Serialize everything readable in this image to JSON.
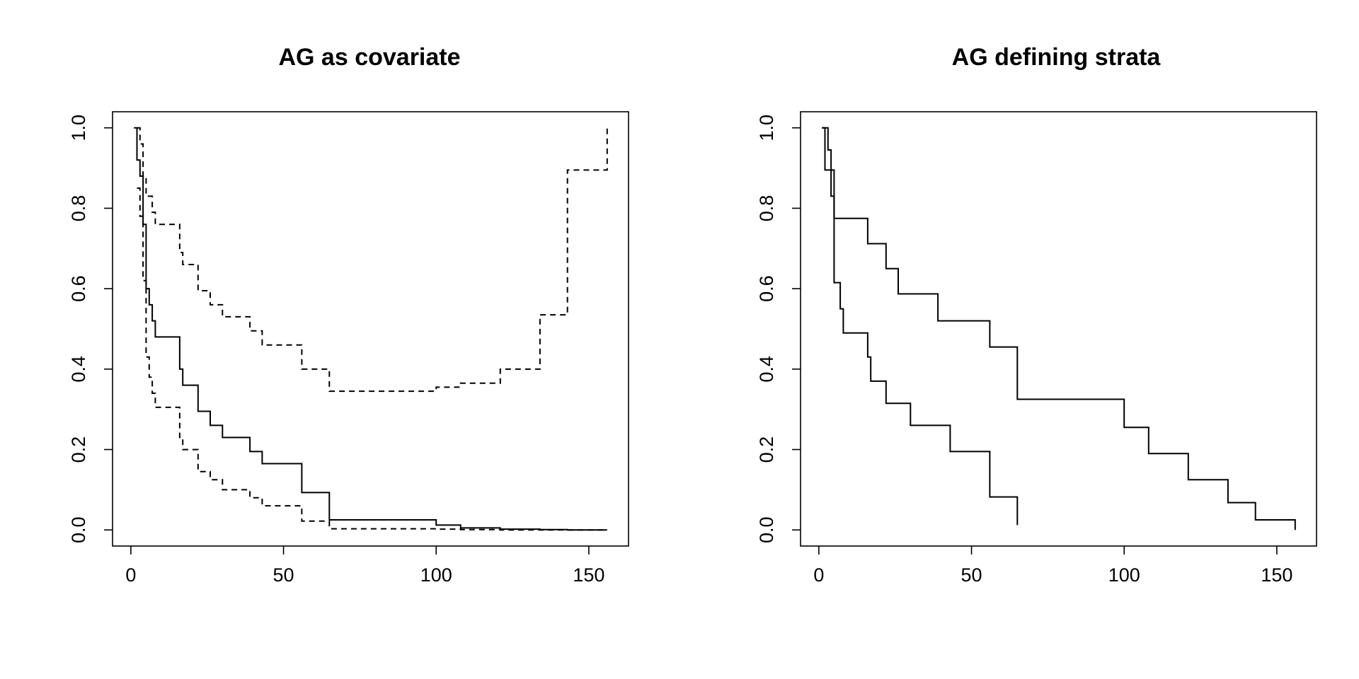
{
  "chart_data": [
    {
      "type": "line",
      "title": "AG as covariate",
      "xlabel": "",
      "ylabel": "",
      "xlim": [
        -6,
        163
      ],
      "ylim": [
        -0.04,
        1.04
      ],
      "xticks": [
        0,
        50,
        100,
        150
      ],
      "xtick_labels": [
        "0",
        "50",
        "100",
        "150"
      ],
      "yticks": [
        0,
        0.2,
        0.4,
        0.6,
        0.8,
        1
      ],
      "ytick_labels": [
        "0.0",
        "0.2",
        "0.4",
        "0.6",
        "0.8",
        "1.0"
      ],
      "step": true,
      "grid": false,
      "series": [
        {
          "style": "solid",
          "x": [
            1,
            2,
            3,
            4,
            5,
            6,
            7,
            8,
            16,
            17,
            22,
            26,
            30,
            39,
            43,
            56,
            65,
            100,
            108,
            121,
            134,
            143,
            156
          ],
          "y": [
            1.0,
            0.92,
            0.88,
            0.76,
            0.6,
            0.56,
            0.52,
            0.48,
            0.4,
            0.36,
            0.295,
            0.26,
            0.23,
            0.195,
            0.165,
            0.093,
            0.025,
            0.012,
            0.005,
            0.002,
            0.001,
            0.0,
            0.0
          ]
        },
        {
          "style": "dashed",
          "x": [
            2,
            3,
            4,
            5,
            7,
            8,
            16,
            17,
            20,
            22,
            26,
            30,
            39,
            43,
            56,
            65,
            100,
            108,
            121,
            134,
            143,
            156,
            156
          ],
          "y": [
            1.0,
            0.96,
            0.88,
            0.83,
            0.79,
            0.76,
            0.69,
            0.66,
            0.66,
            0.595,
            0.56,
            0.53,
            0.495,
            0.46,
            0.4,
            0.345,
            0.355,
            0.365,
            0.4,
            0.535,
            0.895,
            0.895,
            1.0
          ]
        },
        {
          "style": "dashed",
          "x": [
            2,
            3,
            4,
            5,
            6,
            7,
            8,
            16,
            17,
            22,
            26,
            30,
            39,
            43,
            56,
            65,
            100,
            108,
            121,
            134,
            156
          ],
          "y": [
            0.85,
            0.78,
            0.62,
            0.43,
            0.38,
            0.34,
            0.305,
            0.23,
            0.2,
            0.145,
            0.125,
            0.1,
            0.08,
            0.06,
            0.022,
            0.003,
            0.002,
            0.001,
            0.0,
            0.0,
            0.0
          ]
        }
      ]
    },
    {
      "type": "line",
      "title": "AG defining strata",
      "xlabel": "",
      "ylabel": "",
      "xlim": [
        -6,
        163
      ],
      "ylim": [
        -0.04,
        1.04
      ],
      "xticks": [
        0,
        50,
        100,
        150
      ],
      "xtick_labels": [
        "0",
        "50",
        "100",
        "150"
      ],
      "yticks": [
        0,
        0.2,
        0.4,
        0.6,
        0.8,
        1
      ],
      "ytick_labels": [
        "0.0",
        "0.2",
        "0.4",
        "0.6",
        "0.8",
        "1.0"
      ],
      "step": true,
      "grid": false,
      "series": [
        {
          "style": "solid",
          "x": [
            1,
            2,
            3,
            4,
            5,
            16,
            20,
            22,
            26,
            39,
            56,
            65,
            100,
            108,
            121,
            134,
            143,
            156,
            156
          ],
          "y": [
            1.0,
            0.895,
            0.895,
            0.83,
            0.775,
            0.712,
            0.712,
            0.65,
            0.587,
            0.52,
            0.455,
            0.325,
            0.255,
            0.19,
            0.125,
            0.068,
            0.025,
            0.025,
            0.0
          ]
        },
        {
          "style": "solid",
          "x": [
            1,
            2,
            3,
            4,
            5,
            7,
            8,
            16,
            17,
            22,
            30,
            43,
            56,
            65,
            65
          ],
          "y": [
            1.0,
            1.0,
            0.945,
            0.895,
            0.615,
            0.55,
            0.49,
            0.43,
            0.37,
            0.315,
            0.26,
            0.195,
            0.082,
            0.082,
            0.012
          ]
        }
      ]
    }
  ]
}
